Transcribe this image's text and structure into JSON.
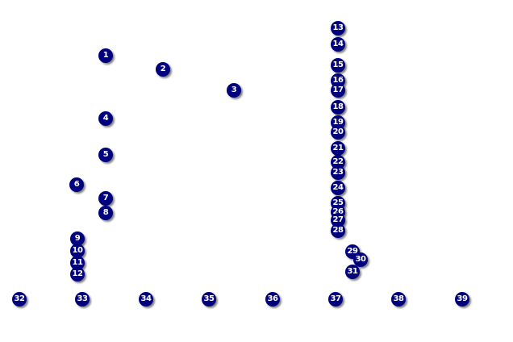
{
  "markers": [
    "1",
    "2",
    "3",
    "4",
    "5",
    "6",
    "7",
    "8",
    "9",
    "10",
    "11",
    "12",
    "13",
    "14",
    "15",
    "16",
    "17",
    "18",
    "19",
    "20",
    "21",
    "22",
    "23",
    "24",
    "25",
    "26",
    "27",
    "28",
    "29",
    "30",
    "31",
    "32",
    "33",
    "34",
    "35",
    "36",
    "37",
    "38",
    "39"
  ],
  "colors": {
    "marker_fill": "#00007f",
    "marker_text": "#ffffff",
    "background": "#ffffff"
  }
}
